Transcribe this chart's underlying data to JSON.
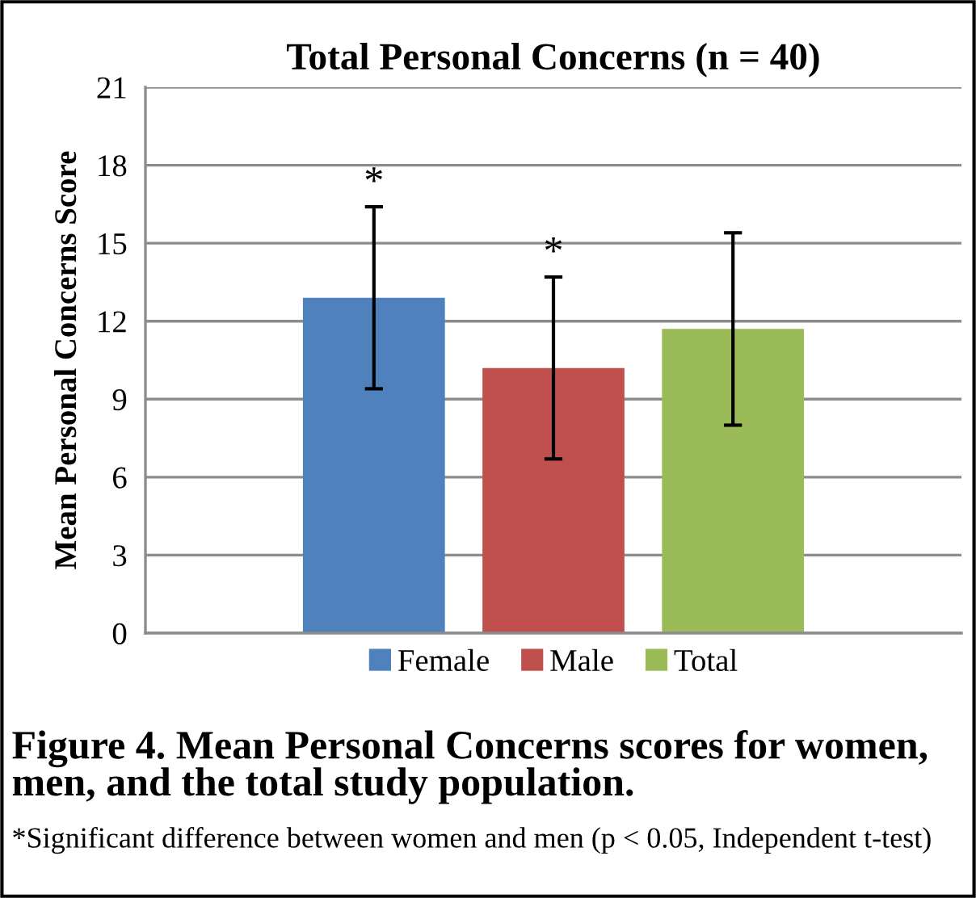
{
  "chart_data": {
    "type": "bar",
    "title": "Total Personal Concerns (n = 40)",
    "ylabel": "Mean Personal Concerns Score",
    "categories": [
      null
    ],
    "series": [
      {
        "name": "Female",
        "color": "#4f81bd",
        "values": [
          12.9
        ],
        "errors": [
          3.5
        ],
        "value_labels": [
          "*"
        ]
      },
      {
        "name": "Male",
        "color": "#c0504d",
        "values": [
          10.2
        ],
        "errors": [
          3.5
        ],
        "value_labels": [
          "*"
        ]
      },
      {
        "name": "Total",
        "color": "#9bbb59",
        "values": [
          11.7
        ],
        "errors": [
          3.7
        ],
        "value_labels": [
          null
        ]
      }
    ],
    "ylim": [
      0,
      21
    ],
    "yticks": [
      0,
      3,
      6,
      9,
      12,
      15,
      18,
      21
    ],
    "grid": "y",
    "legend": "bottom",
    "annotations": [
      "Figure 4. Mean Personal Concerns scores for women, men, and the total study population.",
      "*Significant difference between women and men (p < 0.05, Independent t-test)"
    ]
  }
}
